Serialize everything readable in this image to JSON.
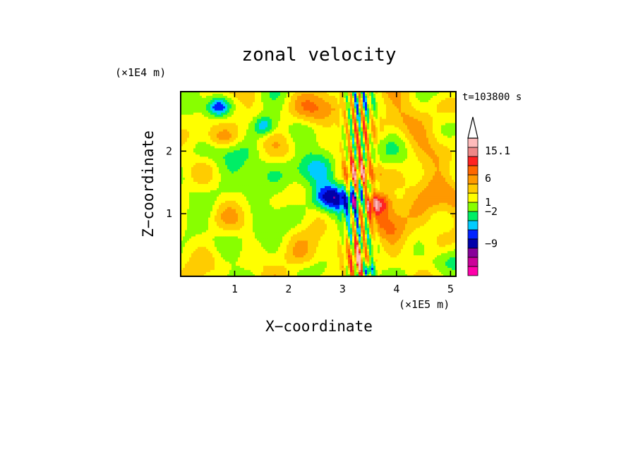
{
  "chart_data": {
    "type": "heatmap",
    "title": "zonal velocity",
    "xlabel": "X−coordinate",
    "ylabel": "Z−coordinate",
    "x_unit": "(×1E5 m)",
    "y_unit": "(×1E4 m)",
    "time_label": "t=103800 s",
    "xlim": [
      0,
      5.1
    ],
    "ylim": [
      0,
      2.95
    ],
    "x_ticks": [
      {
        "value": 1,
        "label": "1"
      },
      {
        "value": 2,
        "label": "2"
      },
      {
        "value": 3,
        "label": "3"
      },
      {
        "value": 4,
        "label": "4"
      },
      {
        "value": 5,
        "label": "5"
      }
    ],
    "y_ticks": [
      {
        "value": 1,
        "label": "1"
      },
      {
        "value": 2,
        "label": "2"
      }
    ],
    "colorbar": {
      "bands": [
        {
          "color": "#ff00aa"
        },
        {
          "color": "#cc0099"
        },
        {
          "color": "#880099"
        },
        {
          "color": "#0000aa"
        },
        {
          "color": "#0022ff"
        },
        {
          "color": "#00ccff"
        },
        {
          "color": "#00ee66"
        },
        {
          "color": "#88ff00"
        },
        {
          "color": "#ffff00"
        },
        {
          "color": "#ffcc00"
        },
        {
          "color": "#ff9900"
        },
        {
          "color": "#ff6600"
        },
        {
          "color": "#ff2222"
        },
        {
          "color": "#ee8888"
        },
        {
          "color": "#ffbbbb"
        }
      ],
      "overflow_color": "#ffffff",
      "labels": [
        {
          "value": "15.1",
          "band": 13.6
        },
        {
          "value": "6",
          "band": 10.6
        },
        {
          "value": "1",
          "band": 8.0
        },
        {
          "value": "−2",
          "band": 7.0
        },
        {
          "value": "−9",
          "band": 3.5
        }
      ]
    },
    "field": {
      "background_level": 0.7,
      "features": [
        {
          "x": 2.75,
          "z": 1.25,
          "sx": 0.35,
          "sz": 0.22,
          "a": -9.5
        },
        {
          "x": 3.25,
          "z": 1.2,
          "sx": 0.12,
          "sz": 0.12,
          "a": -6
        },
        {
          "x": 3.62,
          "z": 1.17,
          "sx": 0.25,
          "sz": 0.18,
          "a": 7.5
        },
        {
          "x": 4.7,
          "z": 1.18,
          "sx": 0.45,
          "sz": 0.45,
          "a": 4
        },
        {
          "x": 2.45,
          "z": 1.75,
          "sx": 0.5,
          "sz": 0.28,
          "a": -2.5
        },
        {
          "x": 3.4,
          "z": 1.65,
          "sx": 0.35,
          "sz": 0.18,
          "a": 4
        },
        {
          "x": 0.7,
          "z": 2.7,
          "sx": 0.2,
          "sz": 0.15,
          "a": -6
        },
        {
          "x": 0.3,
          "z": 2.0,
          "sx": 0.35,
          "sz": 0.25,
          "a": -2
        },
        {
          "x": 1.4,
          "z": 1.65,
          "sx": 0.55,
          "sz": 0.3,
          "a": -2.5
        },
        {
          "x": 2.6,
          "z": 2.65,
          "sx": 0.4,
          "sz": 0.25,
          "a": 3
        },
        {
          "x": 0.8,
          "z": 2.2,
          "sx": 0.35,
          "sz": 0.15,
          "a": 2.5
        },
        {
          "x": 4.3,
          "z": 2.5,
          "sx": 0.4,
          "sz": 0.35,
          "a": 2.5
        },
        {
          "x": 1.3,
          "z": 0.6,
          "sx": 0.6,
          "sz": 0.35,
          "a": -0.9
        },
        {
          "x": 0.3,
          "z": 0.6,
          "sx": 0.35,
          "sz": 0.5,
          "a": 0.4
        },
        {
          "x": 3.3,
          "z": 0.35,
          "sx": 0.12,
          "sz": 0.25,
          "a": 5
        },
        {
          "x": 3.5,
          "z": 0.1,
          "sx": 0.1,
          "sz": 0.12,
          "a": -7
        },
        {
          "x": 4.9,
          "z": 0.25,
          "sx": 0.3,
          "sz": 0.25,
          "a": -2.5
        },
        {
          "x": 1.55,
          "z": 2.4,
          "sx": 0.2,
          "sz": 0.15,
          "a": -5
        },
        {
          "x": 3.85,
          "z": 0.7,
          "sx": 0.3,
          "sz": 0.25,
          "a": 3
        },
        {
          "x": 2.3,
          "z": 0.3,
          "sx": 0.4,
          "sz": 0.2,
          "a": 2.5
        }
      ],
      "waves": [
        {
          "x0": 3.3,
          "xw": 0.25,
          "kx": 38,
          "kz": 7,
          "amp": 5.5
        }
      ],
      "ripples": [
        {
          "kx": 4.3,
          "kz": 3.1,
          "amp": 1.7,
          "phase": 0.4
        },
        {
          "kx": 7.1,
          "kz": 5.3,
          "amp": 1.1,
          "phase": 1.7
        },
        {
          "kx": 2.2,
          "kz": 8.7,
          "amp": 0.9,
          "phase": 2.9
        }
      ]
    }
  }
}
